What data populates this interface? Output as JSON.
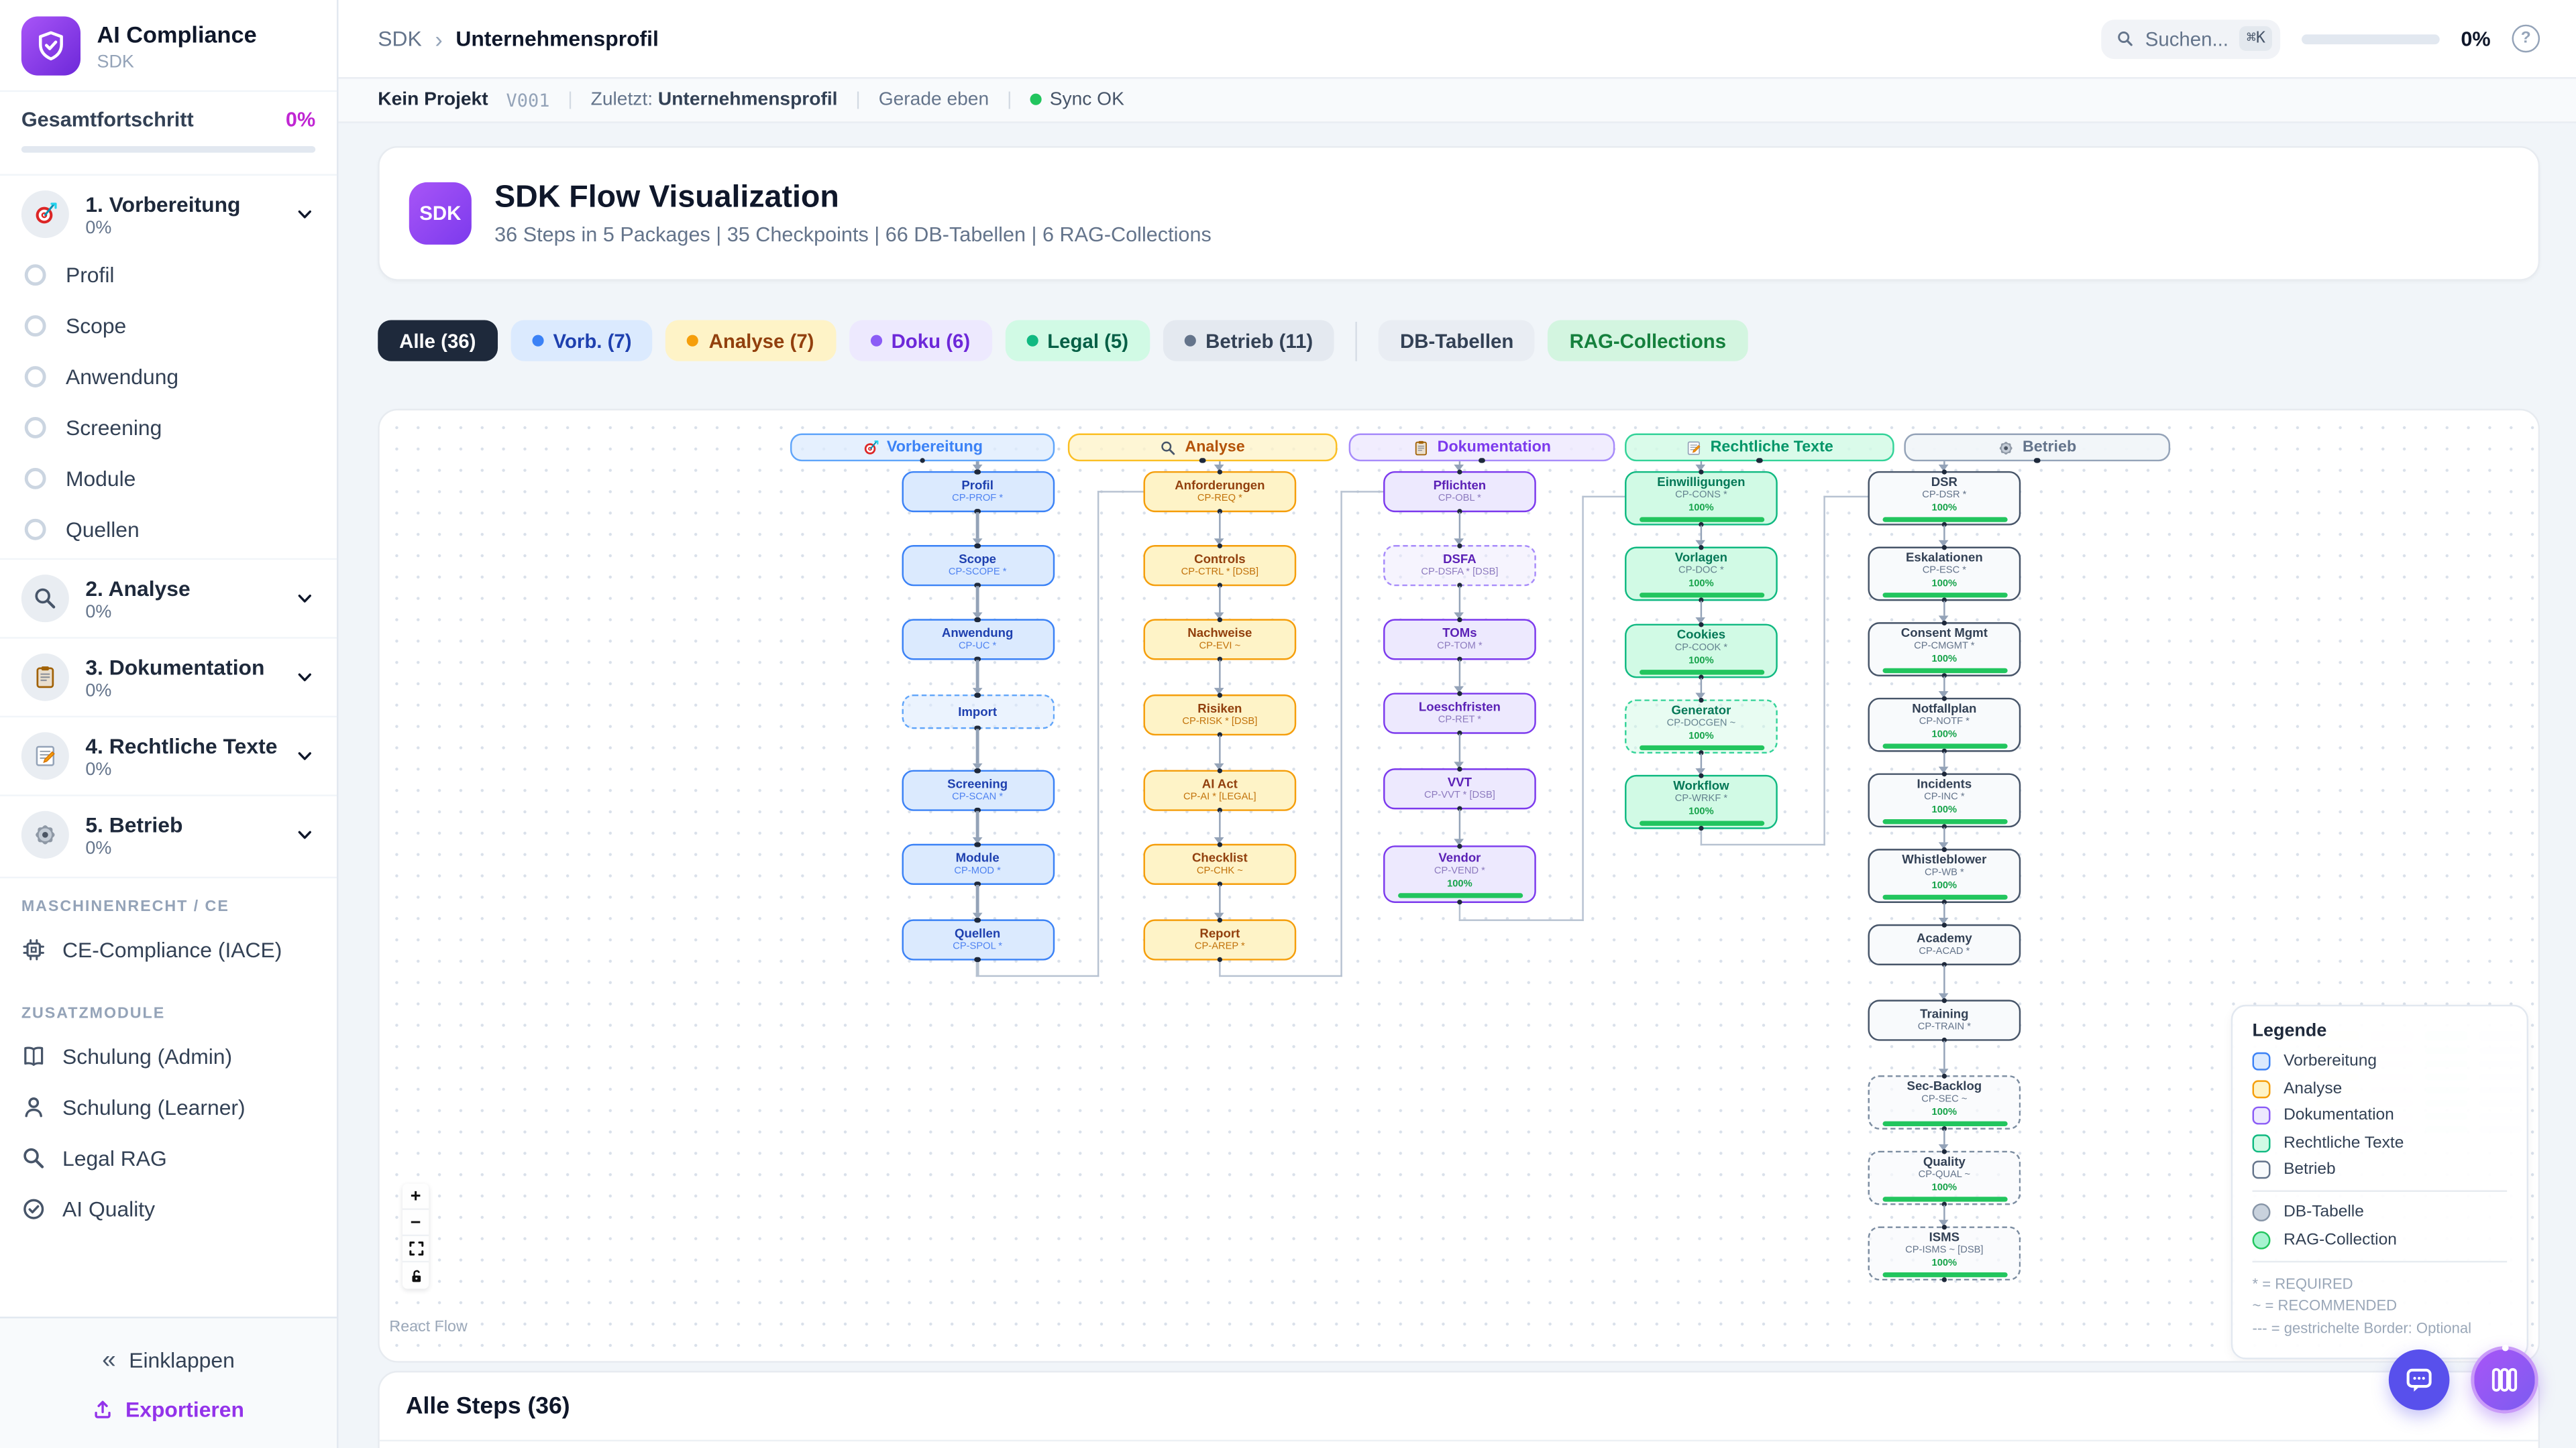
{
  "sidebar": {
    "app_name": "AI Compliance",
    "app_subtitle": "SDK",
    "overall": {
      "label": "Gesamtfortschritt",
      "value": "0%"
    },
    "phases": [
      {
        "label": "1. Vorbereitung",
        "percent": "0%",
        "icon": "target",
        "items": [
          "Profil",
          "Scope",
          "Anwendung",
          "Screening",
          "Module",
          "Quellen"
        ]
      },
      {
        "label": "2. Analyse",
        "percent": "0%",
        "icon": "search",
        "items": []
      },
      {
        "label": "3. Dokumentation",
        "percent": "0%",
        "icon": "clipboard",
        "items": []
      },
      {
        "label": "4. Rechtliche Texte",
        "percent": "0%",
        "icon": "memo",
        "items": []
      },
      {
        "label": "5. Betrieb",
        "percent": "0%",
        "icon": "gear",
        "items": []
      }
    ],
    "machinery_label": "MASCHINENRECHT / CE",
    "machinery_items": [
      {
        "icon": "chip",
        "label": "CE-Compliance (IACE)"
      }
    ],
    "addons_label": "ZUSATZMODULE",
    "addon_items": [
      {
        "icon": "book",
        "label": "Schulung (Admin)"
      },
      {
        "icon": "user",
        "label": "Schulung (Learner)"
      },
      {
        "icon": "search",
        "label": "Legal RAG"
      },
      {
        "icon": "check-circle",
        "label": "AI Quality"
      }
    ],
    "collapse_label": "Einklappen",
    "export_label": "Exportieren"
  },
  "header": {
    "breadcrumb": [
      "SDK",
      "Unternehmensprofil"
    ],
    "search_placeholder": "Suchen...",
    "search_kbd": "⌘K",
    "progress_value": "0%"
  },
  "statusbar": {
    "project": "Kein Projekt",
    "version": "V001",
    "last_label": "Zuletzt:",
    "last_value": "Unternehmensprofil",
    "time": "Gerade eben",
    "sync": "Sync OK"
  },
  "hero": {
    "badge": "SDK",
    "title": "SDK Flow Visualization",
    "subtitle": "36 Steps in 5 Packages | 35 Checkpoints | 66 DB-Tabellen | 6 RAG-Collections"
  },
  "filters": [
    {
      "label": "Alle (36)",
      "theme": "dark",
      "active": true
    },
    {
      "label": "Vorb. (7)",
      "theme": "blue",
      "dot": "#3b82f6"
    },
    {
      "label": "Analyse (7)",
      "theme": "yellow",
      "dot": "#f59e0b"
    },
    {
      "label": "Doku (6)",
      "theme": "purple",
      "dot": "#8b5cf6"
    },
    {
      "label": "Legal (5)",
      "theme": "green",
      "dot": "#10b981"
    },
    {
      "label": "Betrieb (11)",
      "theme": "slate",
      "dot": "#64748b"
    },
    {
      "divider": true
    },
    {
      "label": "DB-Tabellen",
      "theme": "plain"
    },
    {
      "label": "RAG-Collections",
      "theme": "mint"
    }
  ],
  "flow": {
    "columns": [
      {
        "title": "Vorbereitung",
        "icon": "target",
        "theme": "blue",
        "nodes": [
          {
            "title": "Profil",
            "code": "CP-PROF *"
          },
          {
            "title": "Scope",
            "code": "CP-SCOPE *"
          },
          {
            "title": "Anwendung",
            "code": "CP-UC *"
          },
          {
            "title": "Import",
            "code": "",
            "dashed": true
          },
          {
            "title": "Screening",
            "code": "CP-SCAN *"
          },
          {
            "title": "Module",
            "code": "CP-MOD *"
          },
          {
            "title": "Quellen",
            "code": "CP-SPOL *"
          }
        ]
      },
      {
        "title": "Analyse",
        "icon": "search",
        "theme": "yellow",
        "nodes": [
          {
            "title": "Anforderungen",
            "code": "CP-REQ *"
          },
          {
            "title": "Controls",
            "code": "CP-CTRL * [DSB]"
          },
          {
            "title": "Nachweise",
            "code": "CP-EVI ~"
          },
          {
            "title": "Risiken",
            "code": "CP-RISK * [DSB]"
          },
          {
            "title": "AI Act",
            "code": "CP-AI * [LEGAL]"
          },
          {
            "title": "Checklist",
            "code": "CP-CHK ~"
          },
          {
            "title": "Report",
            "code": "CP-AREP *"
          }
        ]
      },
      {
        "title": "Dokumentation",
        "icon": "clipboard",
        "theme": "purple",
        "nodes": [
          {
            "title": "Pflichten",
            "code": "CP-OBL *"
          },
          {
            "title": "DSFA",
            "code": "CP-DSFA * [DSB]",
            "dashed": true
          },
          {
            "title": "TOMs",
            "code": "CP-TOM *"
          },
          {
            "title": "Loeschfristen",
            "code": "CP-RET *"
          },
          {
            "title": "VVT",
            "code": "CP-VVT * [DSB]"
          },
          {
            "title": "Vendor",
            "code": "CP-VEND *",
            "progress": "100%"
          }
        ]
      },
      {
        "title": "Rechtliche Texte",
        "icon": "memo",
        "theme": "green",
        "nodes": [
          {
            "title": "Einwilligungen",
            "code": "CP-CONS *",
            "progress": "100%"
          },
          {
            "title": "Vorlagen",
            "code": "CP-DOC *",
            "progress": "100%"
          },
          {
            "title": "Cookies",
            "code": "CP-COOK *",
            "progress": "100%"
          },
          {
            "title": "Generator",
            "code": "CP-DOCGEN ~",
            "progress": "100%",
            "dashed": true
          },
          {
            "title": "Workflow",
            "code": "CP-WRKF *",
            "progress": "100%"
          }
        ]
      },
      {
        "title": "Betrieb",
        "icon": "gear",
        "theme": "slate",
        "nodes": [
          {
            "title": "DSR",
            "code": "CP-DSR *",
            "progress": "100%"
          },
          {
            "title": "Eskalationen",
            "code": "CP-ESC *",
            "progress": "100%"
          },
          {
            "title": "Consent Mgmt",
            "code": "CP-CMGMT *",
            "progress": "100%"
          },
          {
            "title": "Notfallplan",
            "code": "CP-NOTF *",
            "progress": "100%"
          },
          {
            "title": "Incidents",
            "code": "CP-INC *",
            "progress": "100%"
          },
          {
            "title": "Whistleblower",
            "code": "CP-WB *",
            "progress": "100%"
          },
          {
            "title": "Academy",
            "code": "CP-ACAD *"
          },
          {
            "title": "Training",
            "code": "CP-TRAIN *"
          },
          {
            "title": "Sec-Backlog",
            "code": "CP-SEC ~",
            "progress": "100%",
            "dashed": true
          },
          {
            "title": "Quality",
            "code": "CP-QUAL ~",
            "progress": "100%",
            "dashed": true
          },
          {
            "title": "ISMS",
            "code": "CP-ISMS ~ [DSB]",
            "progress": "100%",
            "dashed": true
          }
        ]
      }
    ],
    "legend": {
      "title": "Legende",
      "phases": [
        {
          "label": "Vorbereitung",
          "theme": "blue"
        },
        {
          "label": "Analyse",
          "theme": "yellow"
        },
        {
          "label": "Dokumentation",
          "theme": "purple"
        },
        {
          "label": "Rechtliche Texte",
          "theme": "green"
        },
        {
          "label": "Betrieb",
          "theme": "slate"
        }
      ],
      "shapes": [
        {
          "label": "DB-Tabelle",
          "kind": "db"
        },
        {
          "label": "RAG-Collection",
          "kind": "rag"
        }
      ],
      "notes": [
        "* = REQUIRED",
        "~ = RECOMMENDED",
        "--- = gestrichelte Border: Optional"
      ]
    },
    "controls": [
      "zoom-in",
      "zoom-out",
      "fit-view",
      "lock-open"
    ],
    "attribution": "React Flow"
  },
  "bottom": {
    "steps_title": "Alle Steps (36)"
  },
  "colors": {
    "accent": "#7c3aed",
    "progress_green": "#22c55e",
    "overall_pct": "#c026d3",
    "sync_green": "#22c55e"
  }
}
